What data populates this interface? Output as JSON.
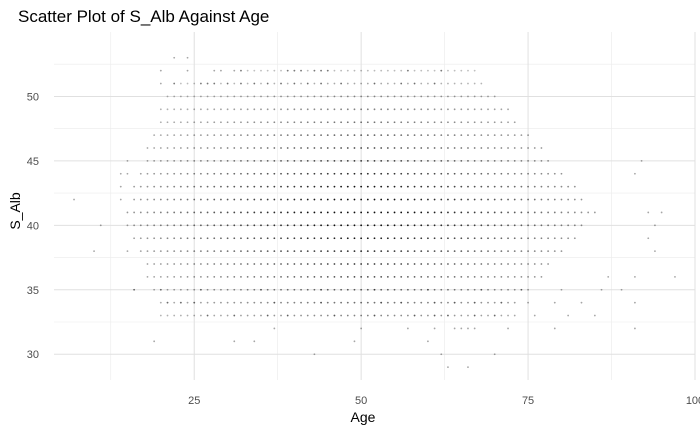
{
  "chart_data": {
    "type": "scatter",
    "title": "Scatter Plot of S_Alb Against Age",
    "xlabel": "Age",
    "ylabel": "S_Alb",
    "xlim": [
      4,
      100
    ],
    "ylim": [
      28,
      55
    ],
    "x_ticks": [
      25,
      50,
      75,
      100
    ],
    "y_ticks": [
      30,
      35,
      40,
      45,
      50
    ],
    "x_tick_labels": [
      "25",
      "50",
      "75",
      "100"
    ],
    "y_tick_labels": [
      "30",
      "35",
      "40",
      "45",
      "50"
    ],
    "grid": true,
    "point_color": "#000000",
    "density_note": "integer-valued points, dense from Age 15-85 and S_Alb 33-52",
    "series": [
      {
        "points": [
          [
            7,
            42
          ],
          [
            11,
            40
          ],
          [
            10,
            38
          ],
          [
            14,
            44
          ],
          [
            14,
            43
          ],
          [
            14,
            42
          ],
          [
            15,
            45
          ],
          [
            15,
            44
          ],
          [
            15,
            40
          ],
          [
            15,
            38
          ],
          [
            16,
            35
          ],
          [
            22,
            53
          ],
          [
            24,
            53
          ],
          [
            24,
            52
          ],
          [
            20,
            52
          ],
          [
            28,
            52
          ],
          [
            29,
            52
          ],
          [
            31,
            52
          ],
          [
            32,
            52
          ],
          [
            39,
            52
          ],
          [
            40,
            52
          ],
          [
            41,
            52
          ],
          [
            43,
            52
          ],
          [
            44,
            52
          ],
          [
            45,
            52
          ],
          [
            57,
            52
          ],
          [
            62,
            52
          ],
          [
            20,
            51
          ],
          [
            22,
            51
          ],
          [
            26,
            51
          ],
          [
            27,
            51
          ],
          [
            28,
            51
          ],
          [
            30,
            51
          ],
          [
            32,
            51
          ],
          [
            34,
            51
          ],
          [
            36,
            51
          ],
          [
            38,
            51
          ],
          [
            40,
            51
          ],
          [
            42,
            51
          ],
          [
            44,
            51
          ],
          [
            47,
            51
          ],
          [
            52,
            51
          ],
          [
            56,
            51
          ],
          [
            58,
            51
          ],
          [
            61,
            51
          ],
          [
            19,
            31
          ],
          [
            31,
            31
          ],
          [
            34,
            31
          ],
          [
            49,
            31
          ],
          [
            60,
            31
          ],
          [
            43,
            30
          ],
          [
            62,
            30
          ],
          [
            70,
            30
          ],
          [
            63,
            29
          ],
          [
            66,
            29
          ],
          [
            37,
            32
          ],
          [
            50,
            32
          ],
          [
            57,
            32
          ],
          [
            61,
            32
          ],
          [
            64,
            32
          ],
          [
            65,
            32
          ],
          [
            66,
            32
          ],
          [
            67,
            32
          ],
          [
            72,
            32
          ],
          [
            79,
            32
          ],
          [
            91,
            32
          ],
          [
            27,
            33
          ],
          [
            31,
            33
          ],
          [
            36,
            33
          ],
          [
            39,
            33
          ],
          [
            46,
            33
          ],
          [
            52,
            33
          ],
          [
            58,
            33
          ],
          [
            61,
            33
          ],
          [
            63,
            33
          ],
          [
            67,
            33
          ],
          [
            70,
            33
          ],
          [
            73,
            33
          ],
          [
            76,
            33
          ],
          [
            81,
            33
          ],
          [
            85,
            33
          ],
          [
            21,
            34
          ],
          [
            23,
            34
          ],
          [
            25,
            34
          ],
          [
            37,
            34
          ],
          [
            44,
            34
          ],
          [
            53,
            34
          ],
          [
            56,
            34
          ],
          [
            61,
            34
          ],
          [
            64,
            34
          ],
          [
            67,
            34
          ],
          [
            71,
            34
          ],
          [
            75,
            34
          ],
          [
            79,
            34
          ],
          [
            83,
            34
          ],
          [
            91,
            34
          ],
          [
            16,
            35
          ],
          [
            20,
            35
          ],
          [
            26,
            35
          ],
          [
            35,
            35
          ],
          [
            44,
            35
          ],
          [
            52,
            35
          ],
          [
            60,
            35
          ],
          [
            68,
            35
          ],
          [
            74,
            35
          ],
          [
            80,
            35
          ],
          [
            86,
            35
          ],
          [
            89,
            35
          ],
          [
            97,
            36
          ],
          [
            91,
            36
          ],
          [
            87,
            36
          ],
          [
            94,
            38
          ],
          [
            93,
            39
          ],
          [
            95,
            41
          ],
          [
            94,
            40
          ],
          [
            91,
            44
          ],
          [
            92,
            45
          ],
          [
            93,
            41
          ]
        ]
      }
    ]
  }
}
